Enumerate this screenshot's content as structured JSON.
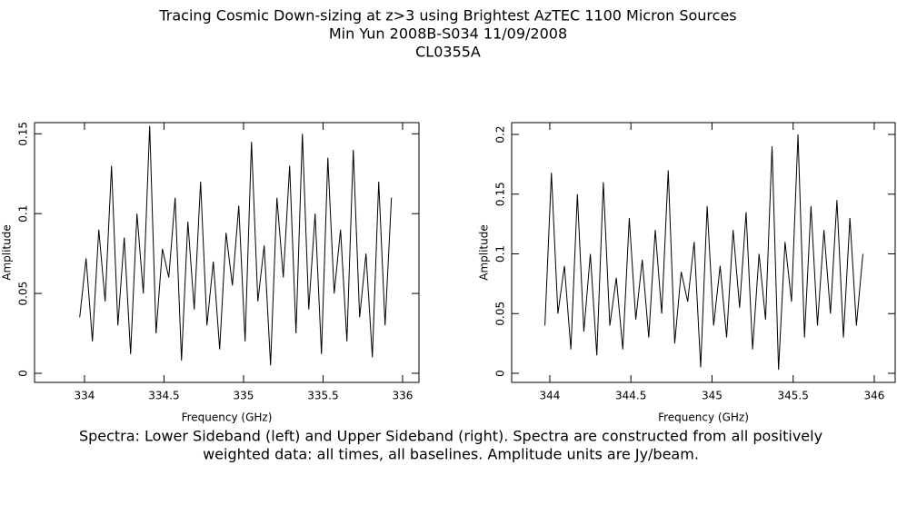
{
  "header": {
    "lines": [
      "Tracing Cosmic Down-sizing at z>3 using Brightest AzTEC 1100 Micron Sources",
      "Min Yun   2008B-S034   11/09/2008",
      "CL0355A"
    ]
  },
  "chart_data": [
    {
      "type": "line",
      "x_label": "Frequency (GHz)",
      "y_label": "Amplitude",
      "x": [
        333.97,
        334.01,
        334.05,
        334.09,
        334.13,
        334.17,
        334.21,
        334.25,
        334.29,
        334.33,
        334.37,
        334.41,
        334.45,
        334.49,
        334.53,
        334.57,
        334.61,
        334.65,
        334.69,
        334.73,
        334.77,
        334.81,
        334.85,
        334.89,
        334.93,
        334.97,
        335.01,
        335.05,
        335.09,
        335.13,
        335.17,
        335.21,
        335.25,
        335.29,
        335.33,
        335.37,
        335.41,
        335.45,
        335.49,
        335.53,
        335.57,
        335.61,
        335.65,
        335.69,
        335.73,
        335.77,
        335.81,
        335.85,
        335.89,
        335.93
      ],
      "series": [
        {
          "color": "#000000",
          "values": [
            0.035,
            0.072,
            0.02,
            0.09,
            0.045,
            0.13,
            0.03,
            0.085,
            0.012,
            0.1,
            0.05,
            0.155,
            0.025,
            0.078,
            0.06,
            0.11,
            0.008,
            0.095,
            0.04,
            0.12,
            0.03,
            0.07,
            0.015,
            0.088,
            0.055,
            0.105,
            0.02,
            0.145,
            0.045,
            0.08,
            0.005,
            0.11,
            0.06,
            0.13,
            0.025,
            0.15,
            0.04,
            0.1,
            0.012,
            0.135,
            0.05,
            0.09,
            0.02,
            0.14,
            0.035,
            0.075,
            0.01,
            0.12,
            0.03,
            0.11
          ]
        }
      ],
      "xlim": [
        333.686,
        336.103
      ],
      "xticks": [
        334,
        334.5,
        335,
        335.5,
        336
      ],
      "ylim": [
        -0.0057,
        0.157
      ],
      "yticks": [
        0,
        0.05,
        0.1,
        0.15
      ]
    },
    {
      "type": "line",
      "x_label": "Frequency (GHz)",
      "y_label": "Amplitude",
      "x": [
        343.97,
        344.01,
        344.05,
        344.09,
        344.13,
        344.17,
        344.21,
        344.25,
        344.29,
        344.33,
        344.37,
        344.41,
        344.45,
        344.49,
        344.53,
        344.57,
        344.61,
        344.65,
        344.69,
        344.73,
        344.77,
        344.81,
        344.85,
        344.89,
        344.93,
        344.97,
        345.01,
        345.05,
        345.09,
        345.13,
        345.17,
        345.21,
        345.25,
        345.29,
        345.33,
        345.37,
        345.41,
        345.45,
        345.49,
        345.53,
        345.57,
        345.61,
        345.65,
        345.69,
        345.73,
        345.77,
        345.81,
        345.85,
        345.89,
        345.93
      ],
      "series": [
        {
          "color": "#000000",
          "values": [
            0.04,
            0.168,
            0.05,
            0.09,
            0.02,
            0.15,
            0.035,
            0.1,
            0.015,
            0.16,
            0.04,
            0.08,
            0.02,
            0.13,
            0.045,
            0.095,
            0.03,
            0.12,
            0.05,
            0.17,
            0.025,
            0.085,
            0.06,
            0.11,
            0.005,
            0.14,
            0.04,
            0.09,
            0.03,
            0.12,
            0.055,
            0.135,
            0.02,
            0.1,
            0.045,
            0.19,
            0.003,
            0.11,
            0.06,
            0.2,
            0.03,
            0.14,
            0.04,
            0.12,
            0.05,
            0.145,
            0.03,
            0.13,
            0.04,
            0.1
          ]
        }
      ],
      "xlim": [
        343.765,
        346.129
      ],
      "xticks": [
        344,
        344.5,
        345,
        345.5,
        346
      ],
      "ylim": [
        -0.0076,
        0.2099
      ],
      "yticks": [
        0,
        0.05,
        0.1,
        0.15,
        0.2
      ]
    }
  ],
  "caption": {
    "lines": [
      "Spectra: Lower Sideband (left) and Upper Sideband (right).  Spectra are constructed from all positively",
      "weighted data: all times, all baselines.  Amplitude units are Jy/beam."
    ]
  }
}
